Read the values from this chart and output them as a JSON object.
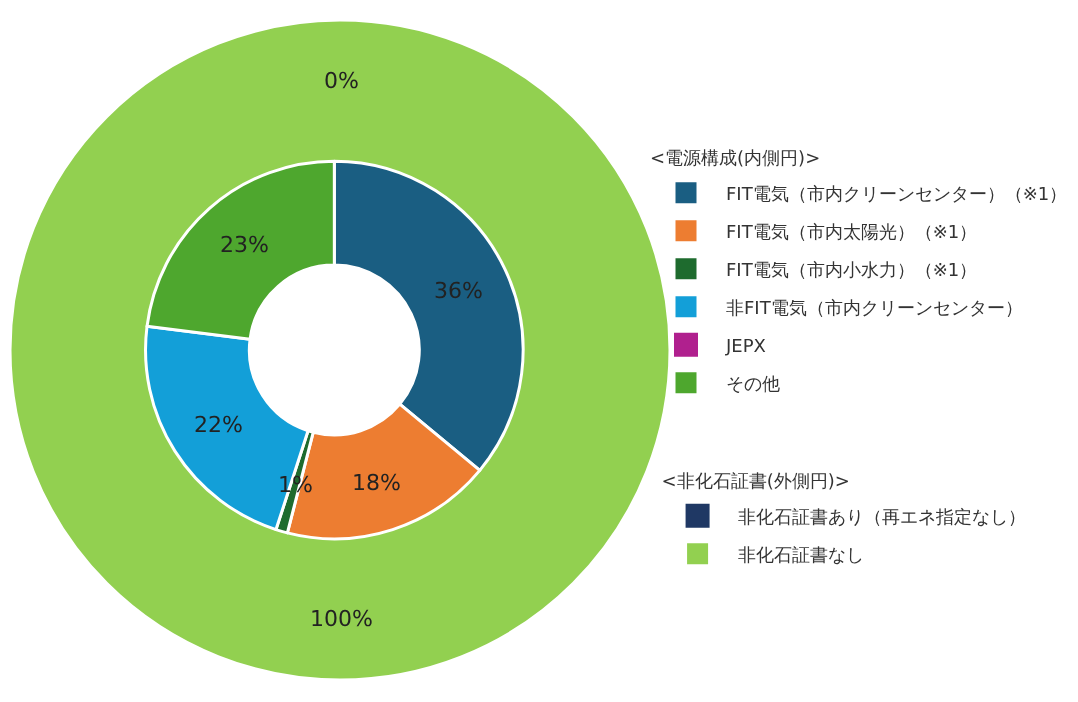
{
  "chart_data": [
    {
      "type": "donut",
      "legend": "right",
      "legend_title": "<電源構成(内側円)>",
      "categories": [
        "FIT電気（市内クリーンセンター）（※1）",
        "FIT電気（市内太陽光）（※1）",
        "FIT電気（市内小水力）（※1）",
        "非FIT電気（市内クリーンセンター）",
        "JEPX",
        "その他"
      ],
      "values": [
        36,
        18,
        1,
        22,
        0,
        23
      ],
      "colors": [
        "#1a5e82",
        "#ed7d31",
        "#1e6b2e",
        "#139fd8",
        "#b0208e",
        "#4ea72e"
      ],
      "value_labels": [
        "36%",
        "18%",
        "1%",
        "22%",
        null,
        "23%"
      ]
    },
    {
      "type": "pie",
      "legend": "right",
      "legend_title": "<非化石証書(外側円)>",
      "categories": [
        "非化石証書あり（再エネ指定なし）",
        "非化石証書なし"
      ],
      "values": [
        0,
        100
      ],
      "colors": [
        "#1f3864",
        "#92d050"
      ],
      "value_labels": [
        "0%",
        "100%"
      ]
    }
  ]
}
